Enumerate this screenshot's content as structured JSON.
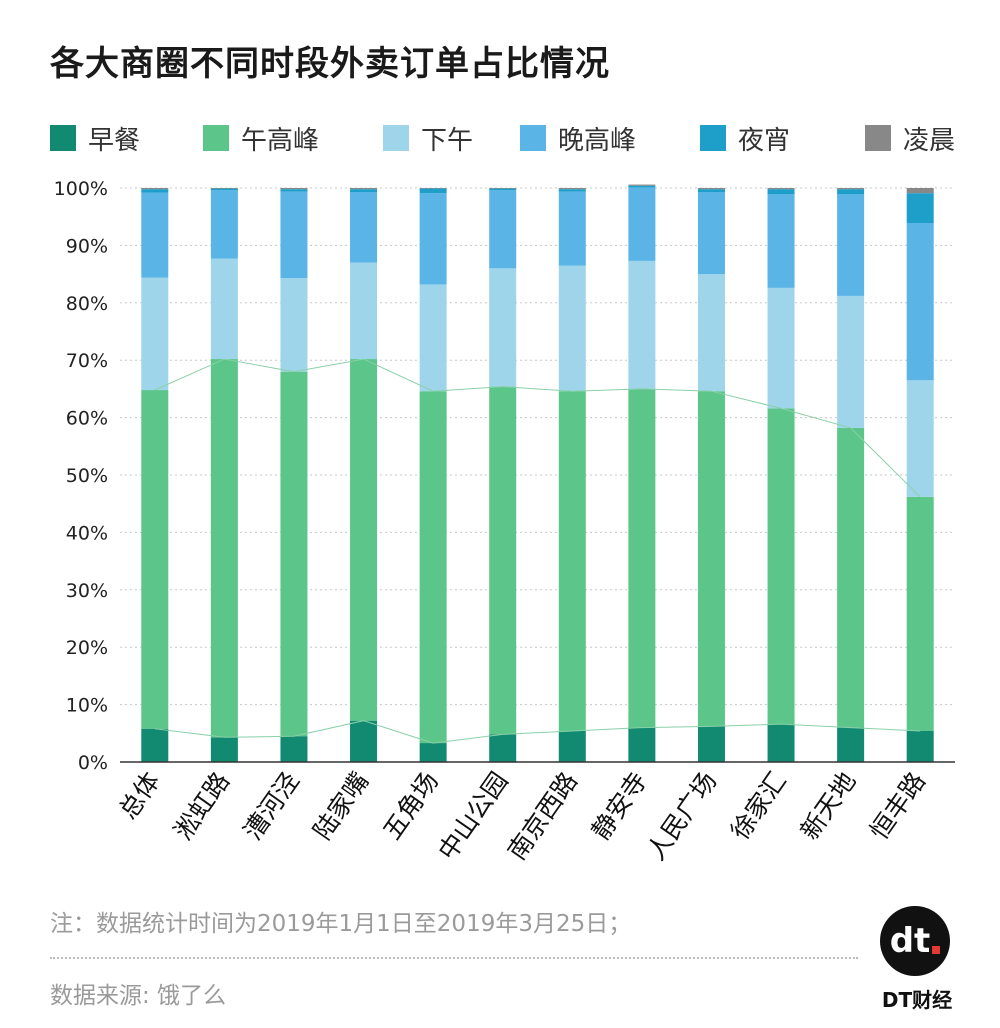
{
  "title": "各大商圈不同时段外卖订单占比情况",
  "legend": [
    {
      "label": "早餐",
      "color": "#128a72"
    },
    {
      "label": "午高峰",
      "color": "#5cc68a"
    },
    {
      "label": "下午",
      "color": "#9ed5ea"
    },
    {
      "label": "晚高峰",
      "color": "#5ab4e6"
    },
    {
      "label": "夜宵",
      "color": "#1e9fca"
    },
    {
      "label": "凌晨",
      "color": "#888888"
    }
  ],
  "chart_data": {
    "type": "bar",
    "stacked": true,
    "title": "各大商圈不同时段外卖订单占比情况",
    "categories": [
      "总体",
      "淞虹路",
      "漕河泾",
      "陆家嘴",
      "五角场",
      "中山公园",
      "南京西路",
      "静安寺",
      "人民广场",
      "徐家汇",
      "新天地",
      "恒丰路"
    ],
    "series": [
      {
        "name": "早餐",
        "values": [
          5.8,
          4.3,
          4.5,
          7.2,
          3.3,
          4.8,
          5.4,
          6.0,
          6.2,
          6.6,
          6.0,
          5.4
        ]
      },
      {
        "name": "午高峰",
        "values": [
          59.0,
          65.9,
          63.5,
          63.0,
          61.3,
          60.6,
          59.2,
          59.0,
          58.4,
          55.0,
          52.2,
          40.8
        ]
      },
      {
        "name": "下午",
        "values": [
          19.6,
          17.5,
          16.3,
          16.8,
          18.6,
          20.6,
          21.9,
          22.3,
          20.4,
          21.0,
          23.0,
          20.3
        ]
      },
      {
        "name": "晚高峰",
        "values": [
          14.8,
          11.9,
          15.1,
          12.3,
          15.9,
          13.6,
          12.9,
          12.8,
          14.3,
          16.3,
          17.7,
          27.4
        ]
      },
      {
        "name": "夜宵",
        "values": [
          0.6,
          0.3,
          0.4,
          0.5,
          0.8,
          0.3,
          0.4,
          0.3,
          0.5,
          0.9,
          0.9,
          5.2
        ]
      },
      {
        "name": "凌晨",
        "values": [
          0.2,
          0.1,
          0.2,
          0.2,
          0.1,
          0.1,
          0.2,
          0.2,
          0.2,
          0.2,
          0.2,
          0.9
        ]
      }
    ],
    "ylim": [
      0,
      100
    ],
    "yticks": [
      "0%",
      "10%",
      "20%",
      "30%",
      "40%",
      "50%",
      "60%",
      "70%",
      "80%",
      "90%",
      "100%"
    ],
    "grid": true,
    "legend_position": "top"
  },
  "footer": {
    "note": "注：数据统计时间为2019年1月1日至2019年3月25日；",
    "source": "数据来源: 饿了么",
    "logo_text": "dt",
    "brand": "DT财经"
  }
}
